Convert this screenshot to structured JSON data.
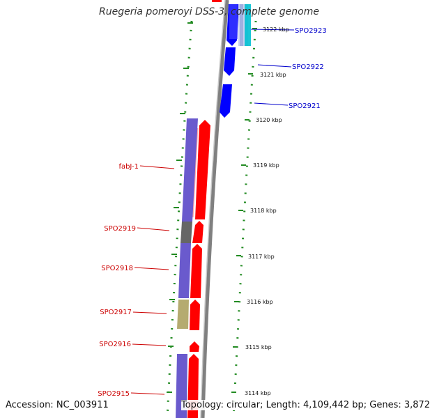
{
  "title": "Ruegeria pomeroyi DSS-3, complete genome",
  "footer": {
    "accession": "Accession: NC_003911",
    "stats": "Topology: circular; Length: 4,109,442 bp; Genes: 3,872"
  },
  "colors": {
    "forward": "#ff0000",
    "reverse": "#0000ff",
    "tick": "#228b22",
    "backbone": "#808080",
    "cog_purple": "#6a5acd",
    "cog_gray": "#666666",
    "cog_khaki": "#b5ab70",
    "cog_cyan": "#00c0d0"
  },
  "scale_labels": [
    "3122 kbp",
    "3121 kbp",
    "3120 kbp",
    "3119 kbp",
    "3118 kbp",
    "3117 kbp",
    "3116 kbp",
    "3115 kbp",
    "3114 kbp"
  ],
  "gene_labels": {
    "right": [
      "SPO2923",
      "SPO2922",
      "SPO2921"
    ],
    "left": [
      "fabJ-1",
      "SPO2919",
      "SPO2918",
      "SPO2917",
      "SPO2916",
      "SPO2915"
    ]
  }
}
